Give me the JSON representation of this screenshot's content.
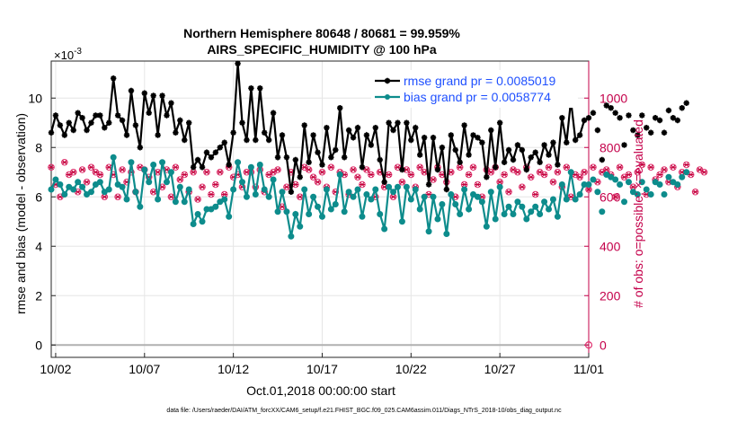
{
  "chart_data": {
    "type": "line",
    "title_line1": "Northern Hemisphere 80648 / 80681 = 99.959%",
    "title_line2": "AIRS_SPECIFIC_HUMIDITY @ 100 hPa",
    "exponent_label": "×10-3",
    "xlabel": "Oct.01,2018 00:00:00 start",
    "ylabel_left": "rmse and bias (model - observation)",
    "ylabel_right": "# of obs: o=possible; ×=evaluated",
    "footer": "data file: /Users/raeder/DAI/ATM_forcXX/CAM6_setup/f.e21.FHIST_BGC.f09_025.CAM6assim.011/Diags_NTrS_2018-10/obs_diag_output.nc",
    "x_ticks": [
      "10/02",
      "10/07",
      "10/12",
      "10/17",
      "10/22",
      "10/27",
      "11/01"
    ],
    "x_tick_days": [
      1,
      6,
      11,
      16,
      21,
      26,
      31
    ],
    "xlim_days": [
      0.75,
      31.0
    ],
    "y_left_ticks": [
      "0",
      "2",
      "4",
      "6",
      "8",
      "10"
    ],
    "y_left_values": [
      0,
      2,
      4,
      6,
      8,
      10
    ],
    "y_left_lim": [
      -0.5,
      11.5
    ],
    "y_right_ticks": [
      "0",
      "200",
      "400",
      "600",
      "800",
      "1000"
    ],
    "y_right_values": [
      0,
      200,
      400,
      600,
      800,
      1000
    ],
    "y_right_lim": [
      -50,
      1150
    ],
    "colors": {
      "rmse": "#000000",
      "bias": "#0d8c8c",
      "obs_possible": "#e0306e",
      "obs_evaluated": "#c4003c",
      "legend_text": "#1f50ff",
      "right_axis": "#c4004a",
      "zero_line": "#b0b0b0",
      "grid": "#e6e6e6"
    },
    "legend": [
      {
        "label": "rmse grand pr = 0.0085019",
        "series": "rmse"
      },
      {
        "label": "bias grand pr = 0.0058774",
        "series": "bias"
      }
    ],
    "grid": true,
    "series_rmse": {
      "name": "rmse",
      "x_step_days": 0.25,
      "x_start_day": 0.75,
      "values": [
        8.6,
        9.3,
        8.9,
        8.5,
        9.0,
        8.7,
        9.4,
        9.2,
        8.7,
        9.0,
        9.3,
        9.3,
        8.8,
        9.0,
        10.8,
        9.3,
        9.1,
        8.5,
        10.3,
        8.9,
        8.0,
        10.2,
        9.4,
        10.1,
        8.5,
        10.1,
        9.3,
        9.8,
        8.6,
        9.1,
        8.3,
        9.0,
        7.2,
        7.5,
        7.2,
        7.8,
        7.6,
        7.8,
        8.0,
        8.2,
        7.3,
        8.6,
        11.4,
        9.0,
        8.3,
        10.4,
        8.3,
        10.4,
        8.6,
        8.3,
        9.4,
        7.6,
        8.5,
        7.6,
        6.2,
        7.5,
        6.8,
        8.9,
        7.4,
        8.5,
        7.8,
        7.3,
        8.8,
        7.6,
        7.9,
        9.6,
        7.6,
        8.7,
        8.4,
        8.8,
        7.2,
        8.5,
        8.1,
        8.8,
        7.5,
        6.6,
        9.0,
        8.7,
        9.0,
        7.1,
        9.0,
        8.3,
        8.8,
        7.7,
        8.4,
        6.5,
        8.4,
        7.1,
        8.0,
        6.3,
        8.5,
        7.9,
        7.4,
        8.9,
        7.7,
        8.5,
        8.4,
        8.2,
        6.8,
        8.7,
        7.2,
        9.0,
        7.4,
        7.9,
        7.5,
        8.1,
        7.9,
        7.1,
        7.6,
        7.8,
        7.4,
        8.1,
        7.7,
        8.2,
        7.3,
        9.2,
        8.2,
        9.9,
        8.3,
        8.5,
        9.1,
        9.2,
        9.4,
        8.7,
        7.5,
        9.7,
        9.6,
        9.4,
        9.2,
        8.1,
        9.3,
        8.7,
        8.5,
        9.3,
        8.8,
        8.6,
        9.2,
        9.1,
        8.6,
        9.5,
        9.2,
        9.1,
        9.6,
        9.8
      ]
    },
    "series_bias": {
      "name": "bias",
      "x_step_days": 0.25,
      "x_start_day": 0.75,
      "values": [
        6.3,
        6.7,
        6.5,
        6.1,
        6.4,
        6.3,
        6.6,
        6.4,
        6.1,
        6.2,
        6.5,
        6.6,
        6.2,
        6.3,
        7.6,
        6.5,
        6.4,
        5.9,
        7.4,
        6.2,
        5.6,
        7.1,
        6.6,
        7.3,
        5.9,
        7.4,
        6.6,
        7.0,
        5.8,
        6.4,
        5.8,
        6.3,
        4.9,
        5.3,
        5.0,
        5.5,
        5.5,
        5.6,
        5.8,
        5.9,
        5.2,
        6.3,
        7.4,
        6.6,
        6.0,
        7.2,
        6.1,
        7.3,
        6.3,
        6.0,
        6.7,
        5.4,
        6.2,
        5.4,
        4.4,
        5.3,
        4.8,
        6.3,
        5.3,
        6.0,
        5.6,
        5.2,
        6.3,
        5.5,
        5.7,
        6.9,
        5.4,
        6.2,
        6.0,
        6.3,
        5.2,
        6.1,
        5.9,
        6.3,
        5.3,
        4.7,
        6.4,
        6.2,
        6.4,
        5.0,
        6.4,
        5.9,
        6.3,
        5.5,
        6.0,
        4.6,
        6.0,
        5.1,
        5.7,
        4.5,
        6.1,
        5.7,
        5.3,
        6.3,
        5.5,
        6.1,
        6.0,
        5.8,
        4.8,
        6.2,
        5.1,
        6.4,
        5.3,
        5.6,
        5.3,
        5.8,
        5.6,
        5.1,
        5.4,
        5.6,
        5.3,
        5.8,
        5.5,
        5.9,
        5.2,
        6.5,
        5.9,
        7.0,
        5.9,
        6.1,
        6.5,
        6.5,
        6.7,
        6.2,
        5.4,
        6.9,
        6.8,
        6.7,
        6.5,
        5.8,
        6.6,
        6.2,
        6.1,
        6.6,
        6.3,
        6.1,
        6.6,
        6.5,
        6.1,
        6.8,
        6.6,
        6.5,
        6.8,
        7.0
      ]
    },
    "series_obs": {
      "name": "obs",
      "x_step_days": 0.25,
      "x_start_day": 0.75,
      "values": [
        720,
        650,
        600,
        740,
        690,
        700,
        620,
        710,
        660,
        720,
        700,
        690,
        600,
        720,
        690,
        600,
        710,
        660,
        700,
        620,
        720,
        710,
        680,
        620,
        700,
        640,
        710,
        600,
        720,
        670,
        690,
        620,
        700,
        590,
        640,
        700,
        610,
        650,
        700,
        610,
        720,
        680,
        690,
        640,
        700,
        700,
        640,
        710,
        620,
        690,
        700,
        710,
        560,
        640,
        700,
        650,
        600,
        720,
        710,
        680,
        660,
        700,
        640,
        720,
        620,
        700,
        690,
        610,
        710,
        680,
        650,
        710,
        690,
        600,
        700,
        640,
        690,
        600,
        720,
        660,
        710,
        690,
        640,
        720,
        700,
        610,
        670,
        720,
        690,
        660,
        700,
        600,
        720,
        650,
        690,
        720,
        650,
        600,
        710,
        700,
        720,
        660,
        690,
        620,
        710,
        700,
        640,
        720,
        680,
        610,
        700,
        690,
        720,
        660,
        700,
        640,
        720,
        600,
        690,
        680,
        700,
        630,
        720,
        660,
        700,
        710,
        690,
        600,
        720,
        680,
        690,
        640,
        700,
        730,
        610,
        720,
        670,
        690,
        710,
        660,
        720,
        640,
        700,
        730,
        690,
        620,
        710,
        700
      ]
    },
    "obs_possible_end": 0
  }
}
